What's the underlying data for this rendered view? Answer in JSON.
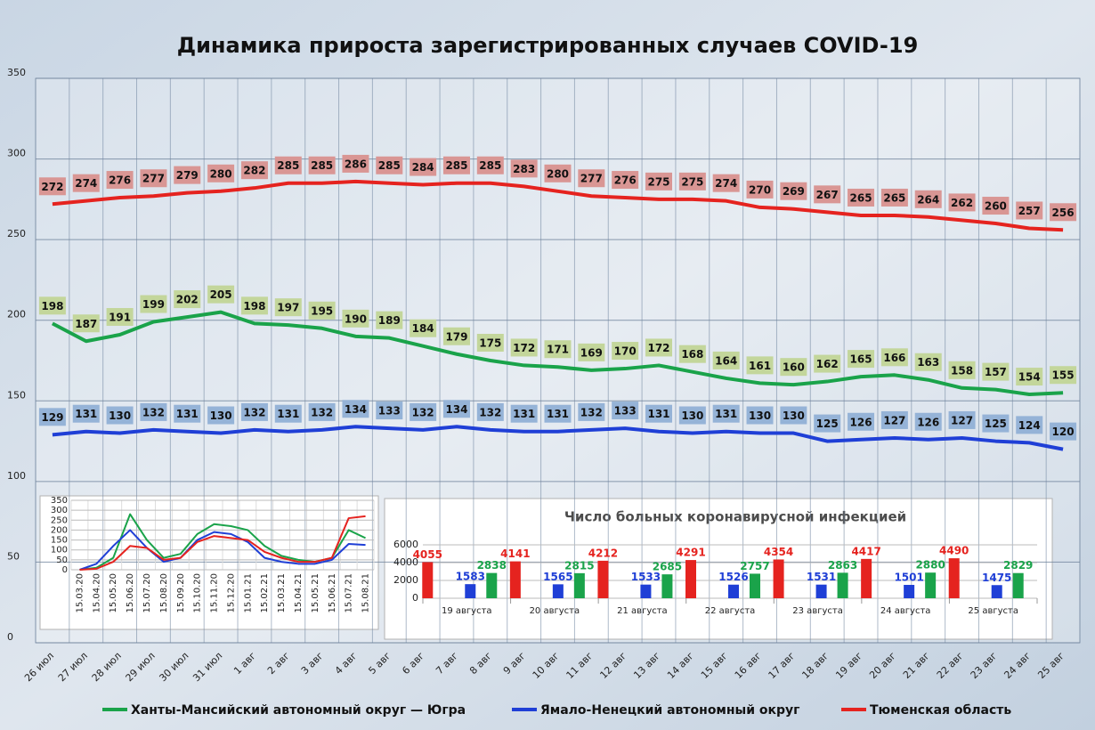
{
  "chart_data": [
    {
      "type": "line",
      "title": "Динамика прироста зарегистрированных случаев COVID-19",
      "categories": [
        "26 июл",
        "27 июл",
        "28 июл",
        "29 июл",
        "30 июл",
        "31 июл",
        "1 авг",
        "2 авг",
        "3 авг",
        "4 авг",
        "5 авг",
        "6 авг",
        "7 авг",
        "8 авг",
        "9 авг",
        "10 авг",
        "11 авг",
        "12 авг",
        "13 авг",
        "14 авг",
        "15 авг",
        "16 авг",
        "17 авг",
        "18 авг",
        "19 авг",
        "20 авг",
        "21 авг",
        "22 авг",
        "23 авг",
        "24 авг",
        "25 авг"
      ],
      "series": [
        {
          "name": "Ханты-Мансийский автономный округ — Югра",
          "color": "#1aa34a",
          "label_color": "#c3d69b",
          "values": [
            198,
            187,
            191,
            199,
            202,
            205,
            198,
            197,
            195,
            190,
            189,
            184,
            179,
            175,
            172,
            171,
            169,
            170,
            172,
            168,
            164,
            161,
            160,
            162,
            165,
            166,
            163,
            158,
            157,
            154,
            155
          ]
        },
        {
          "name": "Ямало-Ненецкий автономный округ",
          "color": "#1f3fd6",
          "label_color": "#95b3d7",
          "values": [
            129,
            131,
            130,
            132,
            131,
            130,
            132,
            131,
            132,
            134,
            133,
            132,
            134,
            132,
            131,
            131,
            132,
            133,
            131,
            130,
            131,
            130,
            130,
            125,
            126,
            127,
            126,
            127,
            125,
            124,
            120
          ]
        },
        {
          "name": "Тюменская область",
          "color": "#e5231f",
          "label_color": "#d99694",
          "values": [
            272,
            274,
            276,
            277,
            279,
            280,
            282,
            285,
            285,
            286,
            285,
            284,
            285,
            285,
            283,
            280,
            277,
            276,
            275,
            275,
            274,
            270,
            269,
            267,
            265,
            265,
            264,
            262,
            260,
            257,
            256
          ]
        }
      ],
      "ylim": [
        0,
        350
      ],
      "yticks": [
        0,
        50,
        100,
        150,
        200,
        250,
        300,
        350
      ],
      "grid": true,
      "legend": "bottom"
    },
    {
      "type": "line",
      "categories": [
        "15.03.20",
        "15.04.20",
        "15.05.20",
        "15.06.20",
        "15.07.20",
        "15.08.20",
        "15.09.20",
        "15.10.20",
        "15.11.20",
        "15.12.20",
        "15.01.21",
        "15.02.21",
        "15.03.21",
        "15.04.21",
        "15.05.21",
        "15.06.21",
        "15.07.21",
        "15.08.21"
      ],
      "series": [
        {
          "color": "#1aa34a",
          "values": [
            0,
            10,
            60,
            280,
            150,
            60,
            80,
            180,
            230,
            220,
            200,
            120,
            70,
            50,
            40,
            60,
            200,
            160
          ]
        },
        {
          "color": "#1f3fd6",
          "values": [
            0,
            30,
            120,
            200,
            110,
            40,
            60,
            150,
            190,
            180,
            140,
            60,
            40,
            30,
            30,
            50,
            130,
            125
          ]
        },
        {
          "color": "#e5231f",
          "values": [
            0,
            5,
            40,
            120,
            110,
            50,
            60,
            140,
            170,
            160,
            150,
            90,
            60,
            40,
            40,
            60,
            260,
            270
          ]
        }
      ],
      "ylim": [
        0,
        350
      ],
      "yticks": [
        0,
        50,
        100,
        150,
        200,
        250,
        300,
        350
      ],
      "grid": true
    },
    {
      "type": "bar",
      "title": "Число больных коронавирусной инфекцией",
      "categories": [
        "19 августа",
        "20 августа",
        "21 августа",
        "22 августа",
        "23 августа",
        "24 августа",
        "25 августа"
      ],
      "series": [
        {
          "color": "#e5231f",
          "values": [
            4055,
            4141,
            4212,
            4291,
            4354,
            4417,
            4490
          ]
        },
        {
          "color": "#1f3fd6",
          "values": [
            1583,
            1565,
            1533,
            1526,
            1531,
            1501,
            1475
          ]
        },
        {
          "color": "#1aa34a",
          "values": [
            2838,
            2815,
            2685,
            2757,
            2863,
            2880,
            2829
          ]
        }
      ],
      "ylim": [
        0,
        6000
      ],
      "yticks": [
        0,
        2000,
        4000,
        6000
      ],
      "grid": true
    }
  ]
}
